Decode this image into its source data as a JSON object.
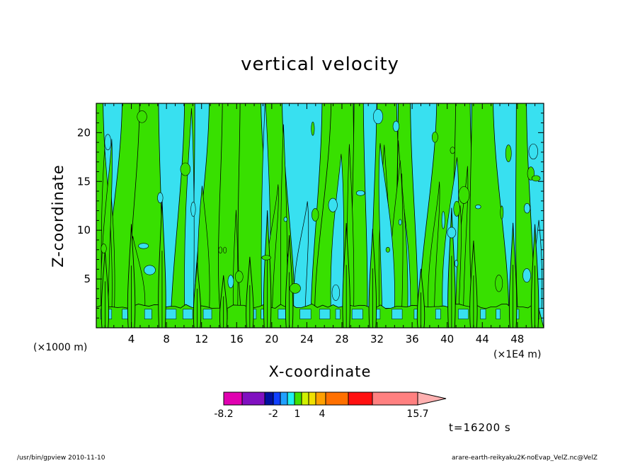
{
  "chart_data": {
    "type": "heatmap",
    "title": "vertical velocity",
    "xlabel": "X-coordinate",
    "ylabel": "Z-coordinate",
    "x_unit_left": "(×1000 m)",
    "x_unit_right": "(×1E4 m)",
    "xlim": [
      0,
      51
    ],
    "ylim": [
      0,
      23
    ],
    "xticks": [
      4,
      8,
      12,
      16,
      20,
      24,
      28,
      32,
      36,
      40,
      44,
      48
    ],
    "yticks": [
      5,
      10,
      15,
      20
    ],
    "fill_colors": {
      "negative": "#38e0f0",
      "positive": "#38e000",
      "contour": "#000000"
    },
    "updraft_columns_x": [
      1,
      4,
      7.5,
      11.5,
      14.5,
      17.5,
      19.5,
      22,
      28.5,
      31.5,
      37,
      40.5,
      43,
      47.5,
      50
    ],
    "boundary_layer_top": 2.2,
    "colorbar": {
      "colors": [
        "#e000b0",
        "#8010c0",
        "#0010a0",
        "#1040ff",
        "#20a0ff",
        "#20f0f0",
        "#40e000",
        "#d0f000",
        "#f0e000",
        "#ffa000",
        "#ff7000",
        "#ff1010",
        "#ff8080",
        "#ffb0b0"
      ],
      "labels": [
        "-8.2",
        "-2",
        "1",
        "4",
        "15.7"
      ]
    },
    "time_label": "t=16200 s"
  },
  "footer": {
    "left": "/usr/bin/gpview  2010-11-10",
    "right": "arare-earth-reikyaku2K-noEvap_VelZ.nc@VelZ"
  }
}
